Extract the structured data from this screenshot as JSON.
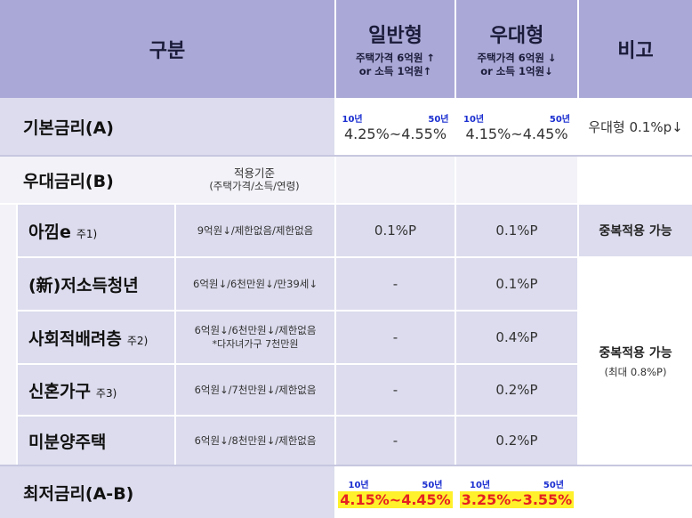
{
  "header": {
    "category": "구분",
    "general": {
      "title": "일반형",
      "line1": "주택가격 6억원 ↑",
      "line2": "or 소득 1억원↑"
    },
    "preferred": {
      "title": "우대형",
      "line1": "주택가격 6억원 ↓",
      "line2": "or 소득 1억원↓"
    },
    "remark": "비고"
  },
  "base_rate": {
    "label": "기본금리(A)",
    "term10": "10년",
    "term50": "50년",
    "general": "4.25%~4.55%",
    "preferred": "4.15%~4.45%",
    "remark": "우대형 0.1%p↓"
  },
  "preferential": {
    "label": "우대금리(B)",
    "criteria_title": "적용기준",
    "criteria_sub": "(주택가격/소득/연령)"
  },
  "rows": [
    {
      "label": "아낌e",
      "note": "주1)",
      "criteria1": "9억원↓/제한없음/제한없음",
      "criteria2": "",
      "general": "0.1%P",
      "preferred": "0.1%P"
    },
    {
      "label": "(新)저소득청년",
      "note": "",
      "criteria1": "6억원↓/6천만원↓/만39세↓",
      "criteria2": "",
      "general": "-",
      "preferred": "0.1%P"
    },
    {
      "label": "사회적배려층",
      "note": "주2)",
      "criteria1": "6억원↓/6천만원↓/제한없음",
      "criteria2": "*다자녀가구 7천만원",
      "general": "-",
      "preferred": "0.4%P"
    },
    {
      "label": "신혼가구",
      "note": "주3)",
      "criteria1": "6억원↓/7천만원↓/제한없음",
      "criteria2": "",
      "general": "-",
      "preferred": "0.2%P"
    },
    {
      "label": "미분양주택",
      "note": "",
      "criteria1": "6억원↓/8천만원↓/제한없음",
      "criteria2": "",
      "general": "-",
      "preferred": "0.2%P"
    }
  ],
  "remarks": {
    "dup1": "중복적용 가능",
    "dup2": "중복적용 가능",
    "dup2_sub": "(최대 0.8%P)"
  },
  "min_rate": {
    "label": "최저금리(A-B)",
    "term10": "10년",
    "term50": "50년",
    "general": "4.15%~4.45%",
    "preferred": "3.25%~3.55%"
  }
}
